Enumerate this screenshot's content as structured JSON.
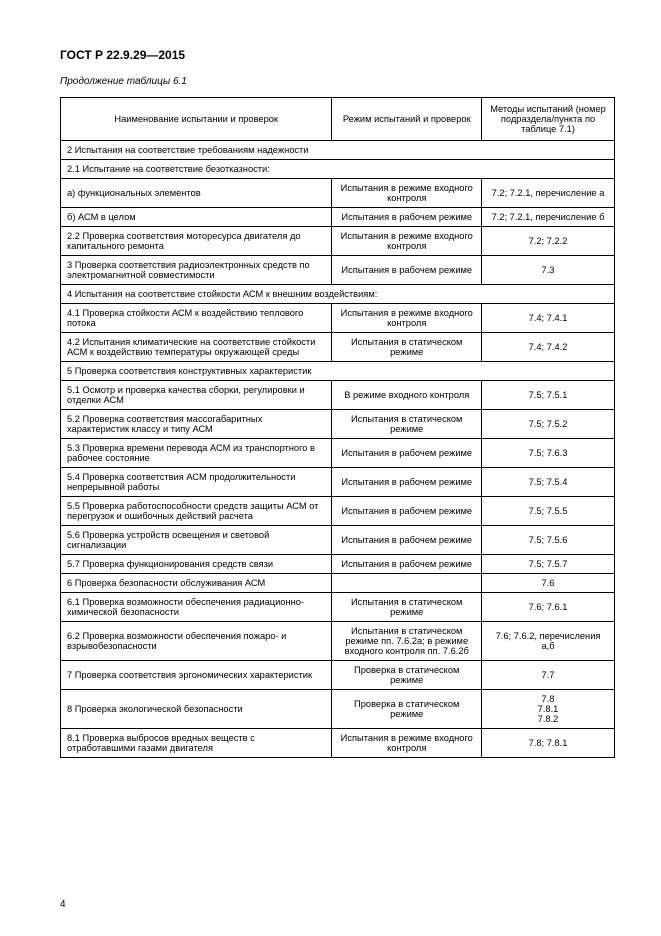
{
  "header": {
    "doc_code": "ГОСТ Р 22.9.29—2015",
    "continuation": "Продолжение таблицы 6.1",
    "page_number": "4"
  },
  "table": {
    "columns": {
      "c1": "Наименование испытании и проверок",
      "c2": "Режим испытаний и проверок",
      "c3": "Методы испытаний (номер подраздела/пункта по таблице 7.1)"
    },
    "rows": [
      {
        "type": "section",
        "c1": "2 Испытания на соответствие требованиям надежности"
      },
      {
        "type": "section",
        "c1": "2.1 Испытание на соответствие безотказности:"
      },
      {
        "c1": "а) функциональных элементов",
        "c2": "Испытания в режиме входного контроля",
        "c3": "7.2; 7.2.1, перечисление а"
      },
      {
        "c1": "б) АСМ в целом",
        "c2": "Испытания в рабочем режиме",
        "c3": "7.2; 7.2.1, перечисление б"
      },
      {
        "c1": "2.2 Проверка соответствия моторесурса двигателя до капитального ремонта",
        "c2": "Испытания в режиме входного контроля",
        "c3": "7.2; 7.2.2"
      },
      {
        "c1": "3 Проверка соответствия радиоэлектронных средств по электромагнитной совместимости",
        "c2": "Испытания в рабочем режиме",
        "c3": "7.3"
      },
      {
        "type": "section",
        "c1": "4 Испытания на соответствие стойкости АСМ к внешним воздействиям:"
      },
      {
        "c1": "4.1 Проверка стойкости АСМ к воздействию теплового потока",
        "c2": "Испытания в режиме входного контроля",
        "c3": "7.4; 7.4.1"
      },
      {
        "c1": "4.2 Испытания климатические на соответствие стойкости АСМ к воздействию температуры окружающей среды",
        "c2": "Испытания в статическом режиме",
        "c3": "7.4; 7.4.2"
      },
      {
        "type": "section",
        "c1": "5 Проверка соответствия конструктивных характеристик"
      },
      {
        "c1": "5.1 Осмотр и проверка качества сборки, регулировки и отделки АСМ",
        "c2": "В режиме входного контроля",
        "c3": "7.5; 7.5.1"
      },
      {
        "c1": "5.2 Проверка соответствия массогабаритных характеристик классу и типу АСМ",
        "c2": "Испытания в статическом режиме",
        "c3": "7.5; 7.5.2"
      },
      {
        "c1": "5.3 Проверка времени перевода АСМ из транспортного в рабочее состояние",
        "c2": "Испытания в рабочем режиме",
        "c3": "7.5; 7.6.3"
      },
      {
        "c1": "5.4 Проверка соответствия АСМ продолжительности непрерывной работы",
        "c2": "Испытания в рабочем режиме",
        "c3": "7.5; 7.5.4"
      },
      {
        "c1": "5.5 Проверка работоспособности средств защиты АСМ от перегрузок и ошибочных действий расчета",
        "c2": "Испытания в рабочем режиме",
        "c3": "7.5; 7.5.5"
      },
      {
        "c1": "5.6 Проверка устройств освещения и световой сигнализации",
        "c2": "Испытания в рабочем режиме",
        "c3": "7.5; 7.5.6"
      },
      {
        "c1": "5.7 Проверка функционирования средств связи",
        "c2": "Испытания в рабочем режиме",
        "c3": "7.5; 7.5.7"
      },
      {
        "c1": "6 Проверка безопасности обслуживания АСМ",
        "c2": "",
        "c3": "7.6"
      },
      {
        "c1": "6.1 Проверка возможности обеспечения радиационно-химической безопасности",
        "c2": "Испытания в статическом режиме",
        "c3": "7.6; 7.6.1"
      },
      {
        "c1": "6.2 Проверка возможности обеспечения пожаро- и взрывобезопасности",
        "c2": "Испытания в статическом режиме пп. 7.6.2а; в режиме входного контроля пп. 7.6.2б",
        "c3": "7.6; 7.6.2, перечисления а,б"
      },
      {
        "c1": "7 Проверка соответствия эргономических характеристик",
        "c2": "Проверка в статическом режиме",
        "c3": "7.7"
      },
      {
        "c1": "8 Проверка экологической безопасности",
        "c2": "Проверка в статическом режиме",
        "c3": "7.8\n7.8.1\n7.8.2"
      },
      {
        "c1": "8.1 Проверка выбросов вредных веществ с отработавшими газами двигателя",
        "c2": "Испытания в режиме входного контроля",
        "c3": "7.8; 7.8.1"
      }
    ]
  }
}
